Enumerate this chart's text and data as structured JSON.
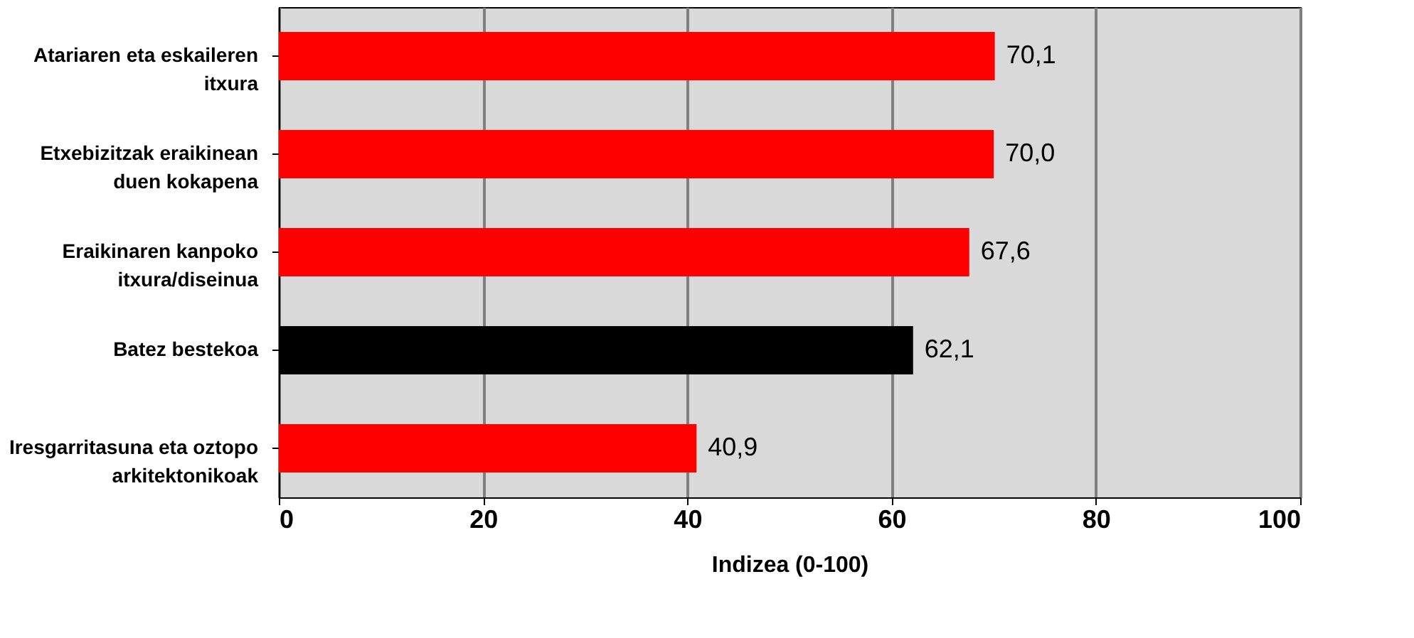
{
  "chart_data": {
    "type": "bar",
    "orientation": "horizontal",
    "xlabel": "Indizea (0-100)",
    "categories": [
      "Atariaren eta eskaileren itxura",
      "Etxebizitzak eraikinean duen kokapena",
      "Eraikinaren kanpoko itxura/diseinua",
      "Batez bestekoa",
      "Iresgarritasuna eta oztopo arkitektonikoak"
    ],
    "values": [
      70.1,
      70.0,
      67.6,
      62.1,
      40.9
    ],
    "colors": [
      "#ff0000",
      "#ff0000",
      "#ff0000",
      "#000000",
      "#ff0000"
    ],
    "value_labels": [
      "70,1",
      "70,0",
      "67,6",
      "62,1",
      "40,9"
    ],
    "xlim": [
      0,
      100
    ],
    "xticks": [
      0,
      20,
      40,
      60,
      80,
      100
    ],
    "grid": "x"
  }
}
